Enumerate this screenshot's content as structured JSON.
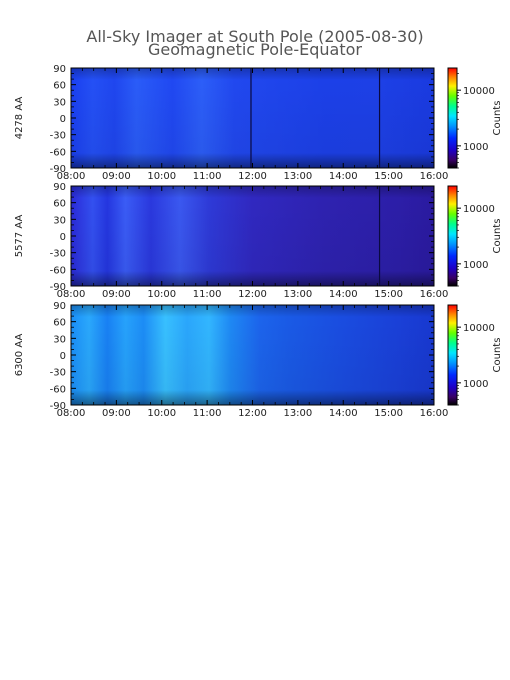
{
  "chart_data": {
    "type": "heatmap",
    "title": "All-Sky Imager at South Pole (2005-08-30)",
    "subtitle": "Geomagnetic Pole-Equator",
    "x_ticks": [
      "08:00",
      "09:00",
      "10:00",
      "11:00",
      "12:00",
      "13:00",
      "14:00",
      "15:00",
      "16:00"
    ],
    "x_range": [
      "08:00",
      "16:00"
    ],
    "y_ticks": [
      "90",
      "60",
      "30",
      "0",
      "-30",
      "-60",
      "-90"
    ],
    "y_range": [
      -90,
      90
    ],
    "colorbar_label": "Counts",
    "colorbar_scale": "log",
    "panels": [
      {
        "ylabel": "4278 AA",
        "colorbar_ticks": [
          "10000",
          "1000"
        ],
        "colorbar_range": [
          400,
          25000
        ],
        "description_level": "moderate",
        "dark_lines": [
          "11:58",
          "14:48"
        ]
      },
      {
        "ylabel": "5577 AA",
        "colorbar_ticks": [
          "10000",
          "1000"
        ],
        "colorbar_range": [
          400,
          25000
        ],
        "description_level": "low",
        "dark_lines": [
          "14:48"
        ]
      },
      {
        "ylabel": "6300 AA",
        "colorbar_ticks": [
          "10000",
          "1000"
        ],
        "colorbar_range": [
          400,
          25000
        ],
        "description_level": "high",
        "dark_lines": []
      }
    ]
  }
}
